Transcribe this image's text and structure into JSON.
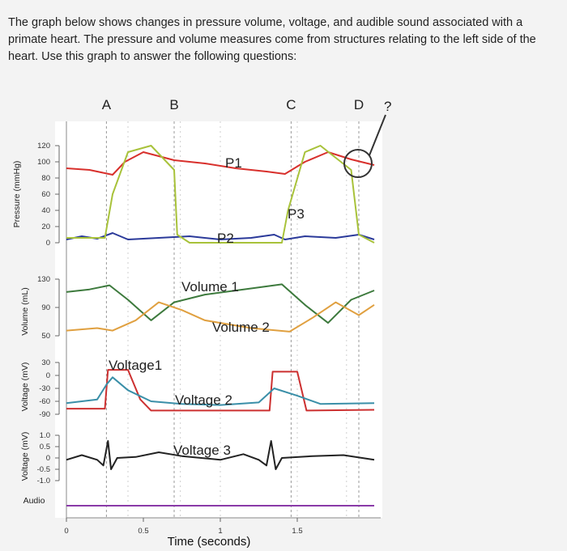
{
  "intro": {
    "line1": "The graph below shows changes in pressure volume, voltage, and audible sound associated with a",
    "line2": "primate heart. The pressure and volume measures come from structures relating to the left side of the",
    "line3": "heart. Use this graph to answer the following questions:"
  },
  "chart_data": {
    "type": "line",
    "xlabel": "Time (seconds)",
    "x_ticks": [
      "0",
      "0.5",
      "1",
      "1.5"
    ],
    "xlim": [
      0,
      2.0
    ],
    "phase_markers": [
      {
        "label": "A",
        "x": 0.26
      },
      {
        "label": "B",
        "x": 0.7
      },
      {
        "label": "C",
        "x": 1.46
      },
      {
        "label": "D",
        "x": 1.9
      }
    ],
    "question_mark": "?",
    "panels": [
      {
        "ylabel": "Pressure (mmHg)",
        "y_ticks": [
          "120",
          "100",
          "80",
          "60",
          "40",
          "20",
          "0"
        ],
        "ylim": [
          0,
          120
        ],
        "series": [
          {
            "label": "P1",
            "color": "#d8302c",
            "points": [
              [
                0,
                92
              ],
              [
                0.15,
                90
              ],
              [
                0.25,
                86
              ],
              [
                0.3,
                84
              ],
              [
                0.38,
                100
              ],
              [
                0.5,
                112
              ],
              [
                0.7,
                102
              ],
              [
                0.9,
                98
              ],
              [
                1.1,
                92
              ],
              [
                1.3,
                88
              ],
              [
                1.42,
                85
              ],
              [
                1.55,
                100
              ],
              [
                1.7,
                112
              ],
              [
                1.85,
                103
              ],
              [
                2.0,
                96
              ]
            ]
          },
          {
            "label": "P2",
            "color": "#2b3a9a",
            "points": [
              [
                0,
                4
              ],
              [
                0.1,
                8
              ],
              [
                0.2,
                5
              ],
              [
                0.3,
                12
              ],
              [
                0.4,
                4
              ],
              [
                0.6,
                6
              ],
              [
                0.8,
                8
              ],
              [
                1.0,
                4
              ],
              [
                1.2,
                6
              ],
              [
                1.35,
                10
              ],
              [
                1.42,
                4
              ],
              [
                1.55,
                8
              ],
              [
                1.75,
                6
              ],
              [
                1.9,
                10
              ],
              [
                2.0,
                4
              ]
            ]
          },
          {
            "label": "P3",
            "color": "#a8c23a",
            "points": [
              [
                0,
                6
              ],
              [
                0.25,
                6
              ],
              [
                0.3,
                60
              ],
              [
                0.4,
                112
              ],
              [
                0.55,
                120
              ],
              [
                0.7,
                90
              ],
              [
                0.72,
                10
              ],
              [
                0.8,
                0
              ],
              [
                1.4,
                0
              ],
              [
                1.44,
                40
              ],
              [
                1.55,
                112
              ],
              [
                1.65,
                120
              ],
              [
                1.85,
                90
              ],
              [
                1.9,
                10
              ],
              [
                2.0,
                0
              ]
            ]
          }
        ]
      },
      {
        "ylabel": "Volume (mL)",
        "y_ticks": [
          "130",
          "90",
          "50"
        ],
        "ylim": [
          30,
          140
        ],
        "series": [
          {
            "label": "Volume 1",
            "color": "#3d7a3d",
            "points": [
              [
                0,
                115
              ],
              [
                0.15,
                120
              ],
              [
                0.28,
                128
              ],
              [
                0.4,
                100
              ],
              [
                0.55,
                60
              ],
              [
                0.7,
                95
              ],
              [
                0.9,
                110
              ],
              [
                1.2,
                122
              ],
              [
                1.4,
                130
              ],
              [
                1.55,
                90
              ],
              [
                1.7,
                55
              ],
              [
                1.85,
                100
              ],
              [
                2.0,
                118
              ]
            ]
          },
          {
            "label": "Volume 2",
            "color": "#e0a040",
            "points": [
              [
                0,
                40
              ],
              [
                0.2,
                45
              ],
              [
                0.3,
                40
              ],
              [
                0.45,
                60
              ],
              [
                0.6,
                95
              ],
              [
                0.75,
                80
              ],
              [
                0.9,
                60
              ],
              [
                1.2,
                45
              ],
              [
                1.45,
                38
              ],
              [
                1.6,
                65
              ],
              [
                1.75,
                95
              ],
              [
                1.9,
                70
              ],
              [
                2.0,
                90
              ]
            ]
          }
        ]
      },
      {
        "ylabel": "Voltage (mV)",
        "y_ticks": [
          "30",
          "0",
          "-30",
          "-60",
          "-90"
        ],
        "ylim": [
          -100,
          40
        ],
        "series": [
          {
            "label": "Voltage1",
            "color": "#cc3030",
            "points": [
              [
                0,
                -85
              ],
              [
                0.25,
                -85
              ],
              [
                0.27,
                20
              ],
              [
                0.4,
                20
              ],
              [
                0.48,
                -60
              ],
              [
                0.55,
                -90
              ],
              [
                1.3,
                -90
              ],
              [
                1.32,
                -90
              ],
              [
                1.34,
                15
              ],
              [
                1.5,
                15
              ],
              [
                1.56,
                -90
              ],
              [
                2.0,
                -88
              ]
            ]
          },
          {
            "label": "Voltage 2",
            "color": "#3a8fa8",
            "points": [
              [
                0,
                -70
              ],
              [
                0.2,
                -60
              ],
              [
                0.26,
                -20
              ],
              [
                0.3,
                0
              ],
              [
                0.4,
                -35
              ],
              [
                0.55,
                -65
              ],
              [
                0.75,
                -72
              ],
              [
                1.0,
                -75
              ],
              [
                1.25,
                -68
              ],
              [
                1.35,
                -30
              ],
              [
                1.5,
                -50
              ],
              [
                1.65,
                -72
              ],
              [
                2.0,
                -70
              ]
            ]
          }
        ]
      },
      {
        "ylabel": "Voltage (mV)",
        "y_ticks": [
          "1.0",
          "0.5",
          "0",
          "-0.5",
          "-1.0"
        ],
        "ylim": [
          -1.2,
          1.2
        ],
        "series": [
          {
            "label": "Voltage 3",
            "color": "#222222",
            "points": [
              [
                0,
                -0.1
              ],
              [
                0.1,
                0.15
              ],
              [
                0.2,
                -0.1
              ],
              [
                0.24,
                -0.4
              ],
              [
                0.27,
                0.9
              ],
              [
                0.29,
                -0.6
              ],
              [
                0.33,
                0
              ],
              [
                0.45,
                0.05
              ],
              [
                0.6,
                0.3
              ],
              [
                0.75,
                0.1
              ],
              [
                1.0,
                -0.1
              ],
              [
                1.15,
                0.2
              ],
              [
                1.25,
                -0.1
              ],
              [
                1.3,
                -0.4
              ],
              [
                1.33,
                0.9
              ],
              [
                1.36,
                -0.6
              ],
              [
                1.4,
                0
              ],
              [
                1.6,
                0.1
              ],
              [
                1.8,
                0.15
              ],
              [
                2.0,
                -0.1
              ]
            ]
          }
        ]
      },
      {
        "ylabel": "Audio",
        "y_ticks": [],
        "series": [
          {
            "label": "",
            "color": "#8a3aa8",
            "points": [
              [
                0,
                0
              ],
              [
                0.25,
                0
              ],
              [
                0.32,
                0
              ],
              [
                0.6,
                0
              ],
              [
                0.72,
                0
              ],
              [
                1.3,
                0
              ],
              [
                1.42,
                0
              ],
              [
                1.85,
                0
              ],
              [
                2.0,
                0
              ]
            ]
          }
        ]
      }
    ]
  },
  "colors": {
    "frame": "#888888",
    "dash": "#999999",
    "circle": "#333333"
  }
}
